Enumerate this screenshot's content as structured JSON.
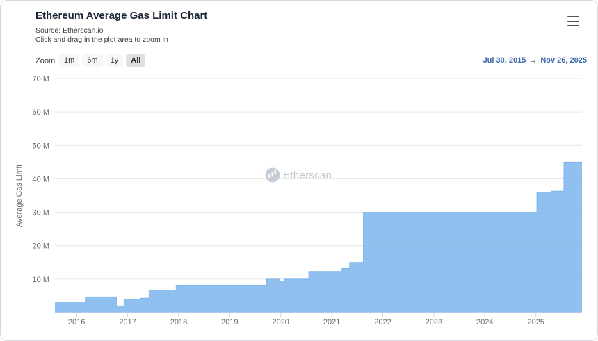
{
  "header": {
    "title": "Ethereum Average Gas Limit Chart",
    "source": "Source: Etherscan.io",
    "hint": "Click and drag in the plot area to zoom in"
  },
  "toolbar": {
    "zoom_label": "Zoom",
    "buttons": [
      {
        "label": "1m",
        "selected": false
      },
      {
        "label": "6m",
        "selected": false
      },
      {
        "label": "1y",
        "selected": false
      },
      {
        "label": "All",
        "selected": true
      }
    ],
    "range": {
      "from": "Jul 30, 2015",
      "arrow": "→",
      "to": "Nov 26, 2025"
    }
  },
  "watermark": {
    "text": "Etherscan"
  },
  "icons": {
    "menu": "hamburger-icon",
    "range_arrow": "arrow-right-icon",
    "logo": "etherscan-logo-icon"
  },
  "colors": {
    "area": "#7cb5ec",
    "grid": "#e6e6e6",
    "axis_line": "#ccd6eb",
    "tick_text": "#666666",
    "range_text": "#3d69b0",
    "watermark_logo": "#c7cdd5",
    "watermark_text": "#bdc5cf",
    "button_bg": "#f7f7f7",
    "button_selected_bg": "#e0e0e0"
  },
  "chart_data": {
    "type": "area",
    "step": "after",
    "title": "Ethereum Average Gas Limit Chart",
    "xlabel": "",
    "ylabel": "Average Gas Limit",
    "x_range": [
      2015.575,
      2025.904
    ],
    "ylim": [
      0,
      70
    ],
    "grid": true,
    "legend": false,
    "y_ticks": [
      10,
      20,
      30,
      40,
      50,
      60,
      70
    ],
    "y_tick_labels": [
      "10 M",
      "20 M",
      "30 M",
      "40 M",
      "50 M",
      "60 M",
      "70 M"
    ],
    "x_ticks": [
      2016,
      2017,
      2018,
      2019,
      2020,
      2021,
      2022,
      2023,
      2024,
      2025
    ],
    "x_tick_labels": [
      "2016",
      "2017",
      "2018",
      "2019",
      "2020",
      "2021",
      "2022",
      "2023",
      "2024",
      "2025"
    ],
    "series": [
      {
        "name": "Average Gas Limit",
        "unit": "millions",
        "color": "#7cb5ec",
        "points": [
          [
            2015.575,
            3.0
          ],
          [
            2016.17,
            4.7
          ],
          [
            2016.78,
            2.0
          ],
          [
            2016.93,
            4.0
          ],
          [
            2017.25,
            4.3
          ],
          [
            2017.42,
            6.7
          ],
          [
            2017.95,
            8.0
          ],
          [
            2019.72,
            10.0
          ],
          [
            2019.97,
            9.4
          ],
          [
            2020.08,
            10.0
          ],
          [
            2020.55,
            12.3
          ],
          [
            2021.2,
            13.2
          ],
          [
            2021.35,
            15.0
          ],
          [
            2021.62,
            30.0
          ],
          [
            2025.02,
            35.8
          ],
          [
            2025.3,
            36.3
          ],
          [
            2025.55,
            45.0
          ],
          [
            2025.904,
            45.0
          ]
        ]
      }
    ]
  }
}
